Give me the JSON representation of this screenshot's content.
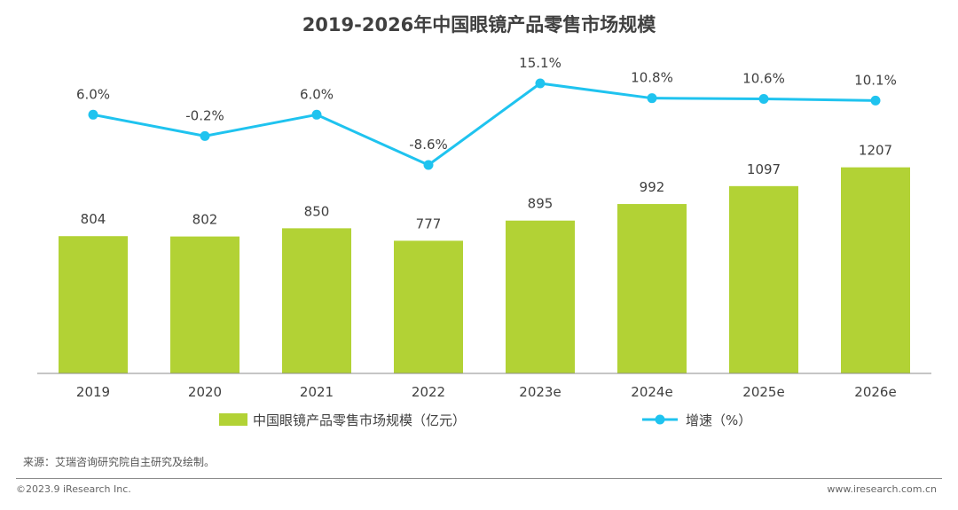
{
  "chart_data": {
    "type": "bar+line",
    "title": "2019-2026年中国眼镜产品零售市场规模",
    "categories": [
      "2019",
      "2020",
      "2021",
      "2022",
      "2023e",
      "2024e",
      "2025e",
      "2026e"
    ],
    "series": [
      {
        "name": "中国眼镜产品零售市场规模（亿元）",
        "type": "bar",
        "color": "#b2d235",
        "values": [
          804,
          802,
          850,
          777,
          895,
          992,
          1097,
          1207
        ],
        "labels": [
          "804",
          "802",
          "850",
          "777",
          "895",
          "992",
          "1097",
          "1207"
        ]
      },
      {
        "name": "增速（%）",
        "type": "line",
        "color": "#1fc3ef",
        "values": [
          6.0,
          -0.2,
          6.0,
          -8.6,
          15.1,
          10.8,
          10.6,
          10.1
        ],
        "labels": [
          "6.0%",
          "-0.2%",
          "6.0%",
          "-8.6%",
          "15.1%",
          "10.8%",
          "10.6%",
          "10.1%"
        ]
      }
    ],
    "grid": false,
    "legend_position": "bottom"
  },
  "footer": {
    "source": "来源：艾瑞咨询研究院自主研究及绘制。",
    "copyright": "©2023.9 iResearch Inc.",
    "website": "www.iresearch.com.cn"
  }
}
